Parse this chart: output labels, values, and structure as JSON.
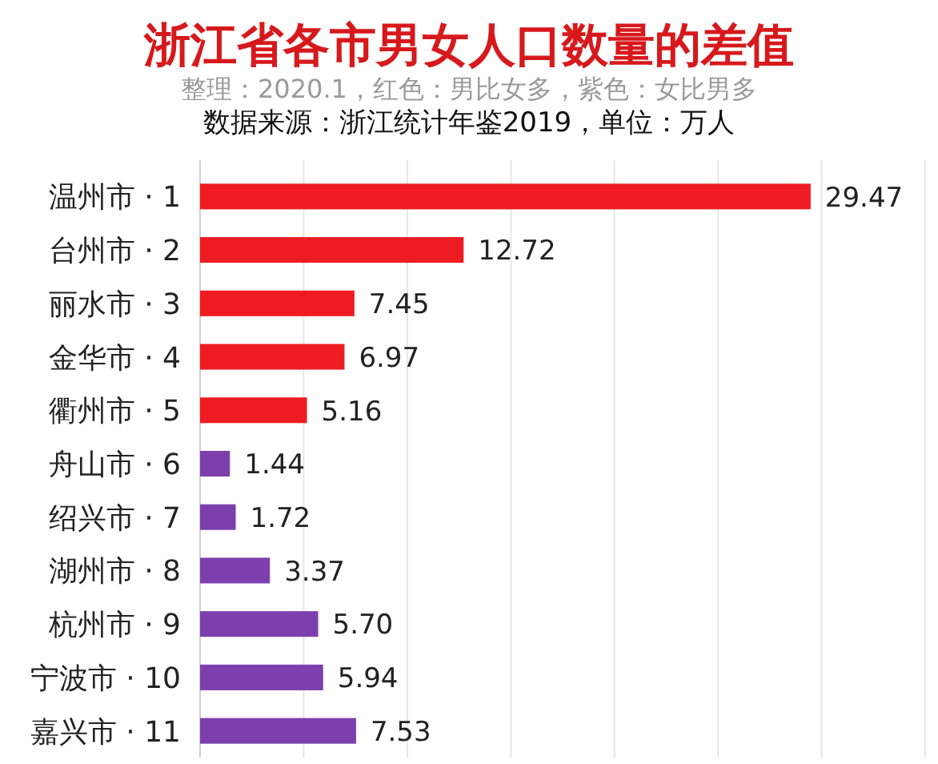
{
  "chart_data": {
    "type": "bar",
    "orientation": "horizontal",
    "title": "浙江省各市男女人口数量的差值",
    "subtitle": "整理：2020.1，红色：男比女多，紫色：女比男多",
    "annotations": [
      "数据来源：浙江统计年鉴2019，单位：万人"
    ],
    "categories": [
      "温州市 · 1",
      "台州市 · 2",
      "丽水市 · 3",
      "金华市 · 4",
      "衢州市 · 5",
      "舟山市 · 6",
      "绍兴市 · 7",
      "湖州市 · 8",
      "杭州市 · 9",
      "宁波市 · 10",
      "嘉兴市 · 11"
    ],
    "values": [
      29.47,
      12.72,
      7.45,
      6.97,
      5.16,
      1.44,
      1.72,
      3.37,
      5.7,
      5.94,
      7.53
    ],
    "value_labels": [
      "29.47",
      "12.72",
      "7.45",
      "6.97",
      "5.16",
      "1.44",
      "1.72",
      "3.37",
      "5.70",
      "5.94",
      "7.53"
    ],
    "colors": [
      "#ee1c22",
      "#ee1c22",
      "#ee1c22",
      "#ee1c22",
      "#ee1c22",
      "#7d3fae",
      "#7d3fae",
      "#7d3fae",
      "#7d3fae",
      "#7d3fae",
      "#7d3fae"
    ],
    "xlim": [
      0,
      35
    ],
    "xticks": [
      {
        "value": 0,
        "label": null
      },
      {
        "value": 5,
        "label": null
      },
      {
        "value": 10,
        "label": null
      },
      {
        "value": 15,
        "label": null
      },
      {
        "value": 20,
        "label": null
      },
      {
        "value": 25,
        "label": null
      },
      {
        "value": 30,
        "label": null
      },
      {
        "value": 35,
        "label": null
      }
    ],
    "grid": "x",
    "tick_labels": "y"
  }
}
